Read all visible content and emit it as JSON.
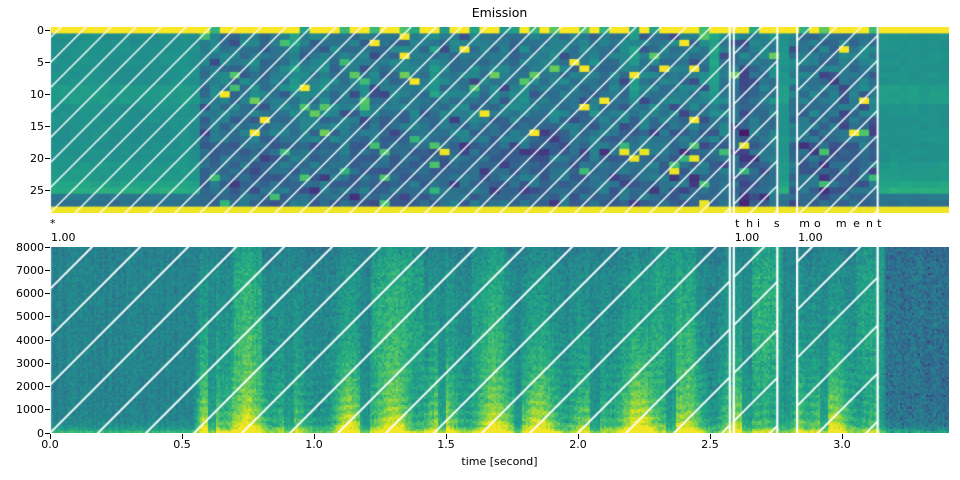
{
  "figure": {
    "title": "Emission",
    "xlabel": "time [second]",
    "background": "#ffffff"
  },
  "chart_data": [
    {
      "type": "heatmap",
      "name": "emission",
      "title": "Emission",
      "colormap": "viridis",
      "rows": 29,
      "frames": 90,
      "y_axis": {
        "meaning": "token index",
        "range": [
          0,
          29
        ],
        "ticks": [
          {
            "label": "0",
            "row": 0
          },
          {
            "label": "5",
            "row": 5
          },
          {
            "label": "10",
            "row": 10
          },
          {
            "label": "15",
            "row": 15
          },
          {
            "label": "20",
            "row": 20
          },
          {
            "label": "25",
            "row": 25
          }
        ]
      },
      "x_axis": {
        "range_seconds": [
          0,
          3.405
        ],
        "tick_labels_visible": false
      },
      "notes": "CTC emission probabilities; blank-token row 0 and bottom row 28 saturate at max (yellow) with dips where characters fire; scattered yellow/green cells mark emitted tokens during speech",
      "blank_row": 0,
      "bottom_row": 28,
      "green_rows": [
        24,
        25
      ],
      "dark_rows": [
        26,
        27
      ]
    },
    {
      "type": "heatmap",
      "name": "spectrogram",
      "colormap": "viridis",
      "xlabel": "time [second]",
      "x_axis": {
        "range_seconds": [
          0,
          3.405
        ],
        "ticks": [
          {
            "label": "0.0",
            "t": 0.0
          },
          {
            "label": "0.5",
            "t": 0.5
          },
          {
            "label": "1.0",
            "t": 1.0
          },
          {
            "label": "1.5",
            "t": 1.5
          },
          {
            "label": "2.0",
            "t": 2.0
          },
          {
            "label": "2.5",
            "t": 2.5
          },
          {
            "label": "3.0",
            "t": 3.0
          }
        ]
      },
      "y_axis": {
        "range_hz": [
          0,
          8000
        ],
        "ticks": [
          {
            "label": "0",
            "hz": 0
          },
          {
            "label": "1000",
            "hz": 1000
          },
          {
            "label": "2000",
            "hz": 2000
          },
          {
            "label": "3000",
            "hz": 3000
          },
          {
            "label": "4000",
            "hz": 4000
          },
          {
            "label": "5000",
            "hz": 5000
          },
          {
            "label": "6000",
            "hz": 6000
          },
          {
            "label": "7000",
            "hz": 7000
          },
          {
            "label": "8000",
            "hz": 8000
          }
        ]
      },
      "speech_activity": [
        [
          0,
          0
        ],
        [
          0.54,
          0
        ],
        [
          0.58,
          0.85
        ],
        [
          0.62,
          1
        ],
        [
          0.78,
          1
        ],
        [
          0.9,
          0.8
        ],
        [
          0.96,
          0.45
        ],
        [
          1.05,
          0.4
        ],
        [
          1.12,
          0.9
        ],
        [
          1.3,
          1
        ],
        [
          1.5,
          0.95
        ],
        [
          1.58,
          0.6
        ],
        [
          1.65,
          0.9
        ],
        [
          1.8,
          1
        ],
        [
          2.0,
          0.9
        ],
        [
          2.08,
          0.55
        ],
        [
          2.15,
          0.95
        ],
        [
          2.3,
          1
        ],
        [
          2.45,
          0.9
        ],
        [
          2.52,
          0.6
        ],
        [
          2.6,
          0.85
        ],
        [
          2.7,
          0.9
        ],
        [
          2.755,
          0.25
        ],
        [
          2.8,
          0.2
        ],
        [
          2.84,
          0.9
        ],
        [
          2.95,
          1
        ],
        [
          3.05,
          0.95
        ],
        [
          3.13,
          0.6
        ],
        [
          3.155,
          0.1
        ],
        [
          3.19,
          0
        ],
        [
          3.45,
          0
        ]
      ],
      "high_band_bursts": [
        [
          0.7,
          0.8,
          0.5
        ],
        [
          1.22,
          1.42,
          0.55
        ],
        [
          1.6,
          1.72,
          0.4
        ],
        [
          2.28,
          2.45,
          0.45
        ],
        [
          2.66,
          2.77,
          0.75
        ],
        [
          3.05,
          3.16,
          0.5
        ]
      ]
    }
  ],
  "alignments": {
    "hatch_color": "#ffffff",
    "segments": [
      {
        "label": "*",
        "score": "1.00",
        "start": 0.0,
        "end": 2.575
      },
      {
        "label": "this",
        "score": "1.00",
        "start": 2.59,
        "end": 2.755
      },
      {
        "label": "moment",
        "score": "1.00",
        "start": 2.83,
        "end": 3.135
      }
    ],
    "tokens": [
      {
        "char": "*",
        "time": 0.0
      },
      {
        "char": "t",
        "time": 2.595
      },
      {
        "char": "h",
        "time": 2.637
      },
      {
        "char": "i",
        "time": 2.678
      },
      {
        "char": "s",
        "time": 2.742
      },
      {
        "char": "m",
        "time": 2.838
      },
      {
        "char": "o",
        "time": 2.894
      },
      {
        "char": "m",
        "time": 2.977
      },
      {
        "char": "e",
        "time": 3.042
      },
      {
        "char": "n",
        "time": 3.091
      },
      {
        "char": "t",
        "time": 3.133
      }
    ]
  },
  "colors": {
    "axis": "#000000",
    "text": "#000000",
    "hatch": "#ffffff",
    "viridis_stops": [
      [
        0.0,
        "#440154"
      ],
      [
        0.1,
        "#482475"
      ],
      [
        0.2,
        "#414487"
      ],
      [
        0.3,
        "#355f8d"
      ],
      [
        0.4,
        "#2a788e"
      ],
      [
        0.5,
        "#21918c"
      ],
      [
        0.6,
        "#22a884"
      ],
      [
        0.7,
        "#42be71"
      ],
      [
        0.8,
        "#7ad151"
      ],
      [
        0.9,
        "#bddf26"
      ],
      [
        1.0,
        "#fde725"
      ]
    ]
  }
}
